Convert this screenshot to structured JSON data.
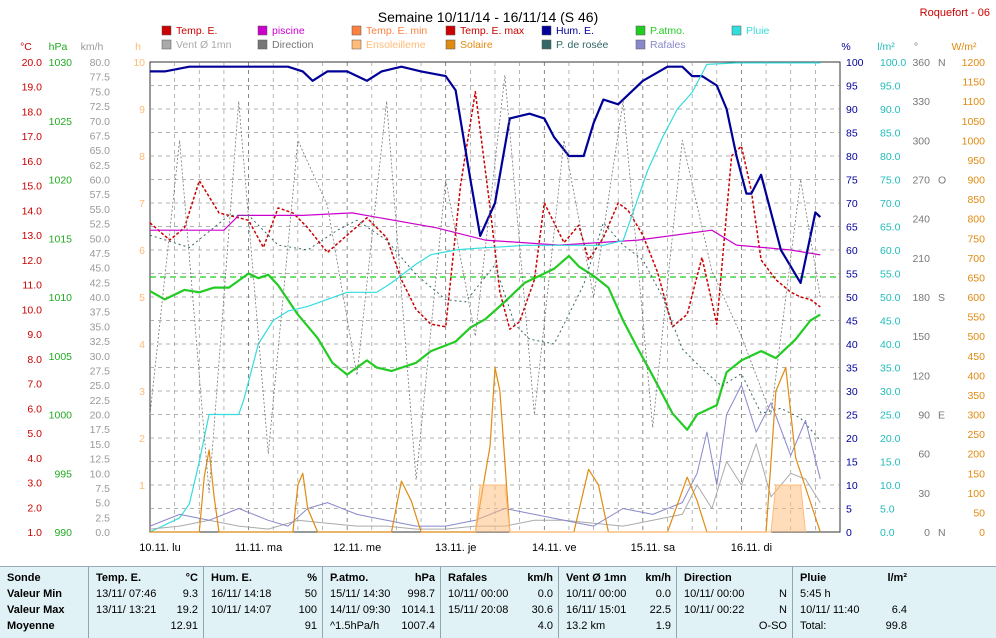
{
  "header": {
    "title": "Semaine 10/11/14 - 16/11/14 (S 46)",
    "station": "Roquefort - 06"
  },
  "colors": {
    "temp": "#cc0000",
    "piscine": "#cc00cc",
    "temp_min": "#ff8040",
    "temp_max": "#cc0000",
    "hum": "#000099",
    "patm": "#22cc22",
    "pluie": "#33dddd",
    "vent": "#aaaaaa",
    "direction": "#777777",
    "ensoleillement": "#ffbb77",
    "solaire": "#e08a10",
    "rosee": "#336666",
    "rafales": "#8888cc"
  },
  "legend": [
    {
      "label": "Temp. E.",
      "color": "#cc0000"
    },
    {
      "label": "piscine",
      "color": "#cc00cc"
    },
    {
      "label": "Temp. E. min",
      "color": "#ff8040"
    },
    {
      "label": "Temp. E. max",
      "color": "#cc0000"
    },
    {
      "label": "Hum. E.",
      "color": "#000099"
    },
    {
      "label": "P.atmo.",
      "color": "#22cc22"
    },
    {
      "label": "Pluie",
      "color": "#33dddd"
    },
    {
      "label": "Vent Ø 1mn",
      "color": "#aaaaaa"
    },
    {
      "label": "Direction",
      "color": "#777777"
    },
    {
      "label": "Ensoleilleme",
      "color": "#ffbb77"
    },
    {
      "label": "Solaire",
      "color": "#e08a10"
    },
    {
      "label": "P. de rosée",
      "color": "#336666"
    },
    {
      "label": "Rafales",
      "color": "#8888cc"
    }
  ],
  "chart_data": {
    "type": "line",
    "title": "Semaine 10/11/14 - 16/11/14 (S 46)",
    "x_categories": [
      "10.11. lu",
      "11.11. ma",
      "12.11. me",
      "13.11. je",
      "14.11. ve",
      "15.11. sa",
      "16.11. di"
    ],
    "axes": {
      "temp": {
        "unit": "°C",
        "min": 1,
        "max": 20,
        "ticks": [
          "1.0",
          "2.0",
          "3.0",
          "4.0",
          "5.0",
          "6.0",
          "7.0",
          "8.0",
          "9.0",
          "10.0",
          "11.0",
          "12.0",
          "13.0",
          "14.0",
          "15.0",
          "16.0",
          "17.0",
          "18.0",
          "19.0",
          "20.0"
        ]
      },
      "patm": {
        "unit": "hPa",
        "min": 990,
        "max": 1030,
        "ticks": [
          "990",
          "995",
          "1000",
          "1005",
          "1010",
          "1015",
          "1020",
          "1025",
          "1030"
        ]
      },
      "wind": {
        "unit": "km/h",
        "min": 0,
        "max": 80,
        "ticks": [
          "0.0",
          "2.5",
          "5.0",
          "7.5",
          "10.0",
          "12.5",
          "15.0",
          "17.5",
          "20.0",
          "22.5",
          "25.0",
          "27.5",
          "30.0",
          "32.5",
          "35.0",
          "37.5",
          "40.0",
          "42.5",
          "45.0",
          "47.5",
          "50.0",
          "52.5",
          "55.0",
          "57.5",
          "60.0",
          "62.5",
          "65.0",
          "67.5",
          "70.0",
          "72.5",
          "75.0",
          "77.5",
          "80.0"
        ]
      },
      "sun": {
        "unit": "h",
        "min": 0,
        "max": 10,
        "ticks": [
          "1",
          "2",
          "3",
          "4",
          "5",
          "6",
          "7",
          "8",
          "9",
          "10"
        ]
      },
      "hum": {
        "unit": "%",
        "min": 0,
        "max": 100,
        "ticks": [
          "0",
          "5",
          "10",
          "15",
          "20",
          "25",
          "30",
          "35",
          "40",
          "45",
          "50",
          "55",
          "60",
          "65",
          "70",
          "75",
          "80",
          "85",
          "90",
          "95",
          "100"
        ]
      },
      "rain": {
        "unit": "l/m²",
        "min": 0,
        "max": 100,
        "ticks": [
          "0.0",
          "5.0",
          "10.0",
          "15.0",
          "20.0",
          "25.0",
          "30.0",
          "35.0",
          "40.0",
          "45.0",
          "50.0",
          "55.0",
          "60.0",
          "65.0",
          "70.0",
          "75.0",
          "80.0",
          "85.0",
          "90.0",
          "95.0",
          "100.0"
        ]
      },
      "dir": {
        "unit": "°",
        "ticks": [
          "0",
          "30",
          "60",
          "90",
          "120",
          "150",
          "180",
          "210",
          "240",
          "270",
          "300",
          "330",
          "360"
        ],
        "compass": [
          "N",
          "",
          "",
          "E",
          "",
          "",
          "S",
          "",
          "",
          "O",
          "",
          "",
          "N"
        ]
      },
      "solar": {
        "unit": "W/m²",
        "min": 0,
        "max": 1200,
        "ticks": [
          "0",
          "50",
          "100",
          "150",
          "200",
          "250",
          "300",
          "350",
          "400",
          "450",
          "500",
          "550",
          "600",
          "650",
          "700",
          "750",
          "800",
          "850",
          "900",
          "950",
          "1000",
          "1050",
          "1100",
          "1150",
          "1200"
        ]
      }
    },
    "series": [
      {
        "name": "Temp. E.",
        "axis": "temp",
        "x": [
          0,
          0.2,
          0.35,
          0.5,
          0.7,
          0.9,
          1.0,
          1.15,
          1.3,
          1.45,
          1.6,
          1.8,
          2.0,
          2.2,
          2.4,
          2.55,
          2.7,
          2.85,
          3.0,
          3.15,
          3.3,
          3.45,
          3.55,
          3.65,
          3.75,
          3.9,
          4.0,
          4.2,
          4.35,
          4.45,
          4.6,
          4.75,
          4.85,
          5.0,
          5.15,
          5.3,
          5.45,
          5.6,
          5.75,
          5.9,
          6.0,
          6.1,
          6.2,
          6.35,
          6.5,
          6.6,
          6.7,
          6.8
        ],
        "y": [
          13.5,
          12.8,
          13.3,
          15.2,
          13.9,
          13.7,
          13.6,
          12.5,
          14.1,
          13.9,
          13.3,
          12.3,
          13.0,
          13.7,
          12.9,
          11.2,
          10.0,
          9.4,
          9.3,
          15.0,
          18.8,
          14.1,
          10.7,
          9.2,
          9.5,
          11.2,
          14.3,
          12.7,
          13.4,
          12.0,
          12.9,
          14.3,
          14.0,
          13.0,
          11.5,
          9.3,
          9.8,
          12.1,
          9.4,
          16.2,
          16.6,
          14.8,
          12.0,
          11.2,
          10.7,
          10.5,
          10.4,
          10.1
        ]
      },
      {
        "name": "piscine",
        "axis": "temp",
        "x": [
          0,
          0.75,
          0.9,
          1.55,
          2.05,
          2.9,
          3.4,
          4.15,
          4.95,
          5.7,
          5.95,
          6.5,
          6.8
        ],
        "y": [
          13.2,
          13.2,
          13.8,
          13.8,
          13.9,
          13.3,
          12.8,
          12.6,
          12.8,
          13.2,
          12.6,
          12.4,
          12.2
        ]
      },
      {
        "name": "Hum. E.",
        "axis": "hum",
        "x": [
          0,
          0.15,
          0.4,
          0.75,
          1.0,
          1.4,
          1.55,
          1.65,
          1.8,
          2.0,
          2.2,
          2.35,
          2.55,
          2.75,
          3.0,
          3.1,
          3.25,
          3.35,
          3.5,
          3.65,
          3.85,
          4.0,
          4.1,
          4.25,
          4.4,
          4.5,
          4.6,
          4.75,
          4.9,
          5.0,
          5.25,
          5.4,
          5.5,
          5.6,
          5.75,
          5.85,
          5.95,
          6.05,
          6.1,
          6.2,
          6.4,
          6.6,
          6.75,
          6.8
        ],
        "y": [
          98,
          98,
          99,
          99,
          99,
          99,
          98,
          96,
          98,
          98,
          96,
          98,
          99,
          98,
          97,
          94,
          75,
          63,
          70,
          88,
          89,
          88,
          84,
          80,
          80,
          87,
          92,
          91,
          94,
          96,
          99,
          99,
          97,
          97,
          95,
          90,
          80,
          72,
          72,
          76,
          60,
          53,
          68,
          67
        ]
      },
      {
        "name": "P.atmo.",
        "axis": "patm",
        "x": [
          0,
          0.15,
          0.35,
          0.5,
          0.65,
          0.8,
          1.0,
          1.1,
          1.2,
          1.3,
          1.5,
          1.7,
          1.85,
          2.0,
          2.2,
          2.3,
          2.45,
          2.7,
          2.85,
          3.1,
          3.25,
          3.4,
          3.6,
          3.8,
          3.95,
          4.1,
          4.25,
          4.35,
          4.5,
          4.65,
          4.8,
          4.95,
          5.1,
          5.3,
          5.45,
          5.55,
          5.75,
          5.85,
          6.0,
          6.2,
          6.35,
          6.55,
          6.7,
          6.8
        ],
        "y": [
          1010.5,
          1009.8,
          1010.6,
          1010.4,
          1010.8,
          1010.8,
          1012,
          1011.6,
          1011.9,
          1011,
          1008.5,
          1006.5,
          1004.4,
          1003.4,
          1004.6,
          1004,
          1003.7,
          1004.4,
          1005.4,
          1006.2,
          1007.4,
          1008.1,
          1009.6,
          1011.2,
          1011.8,
          1012.4,
          1013.5,
          1012.6,
          1011.8,
          1010.8,
          1008,
          1005.6,
          1003.3,
          1000.1,
          998.7,
          1000,
          1000.8,
          1003.6,
          1004.6,
          1005.4,
          1004.8,
          1006.4,
          1008,
          1008.5
        ]
      },
      {
        "name": "P. de rosée",
        "axis": "temp",
        "x": [
          0,
          0.4,
          0.8,
          1.0,
          1.3,
          1.6,
          1.9,
          2.1,
          2.4,
          2.7,
          3.0,
          3.2,
          3.5,
          3.7,
          3.85,
          4.1,
          4.4,
          4.6,
          4.8,
          5.0,
          5.2,
          5.4,
          5.6,
          5.8,
          6.0,
          6.2,
          6.4,
          6.6,
          6.8
        ],
        "y": [
          13,
          12.5,
          13.8,
          13.8,
          12.6,
          12.4,
          13.2,
          13.6,
          12.8,
          11.4,
          10.4,
          10.3,
          11.8,
          9.4,
          8.8,
          8.6,
          11.0,
          13.5,
          12.6,
          12.0,
          10.5,
          8.4,
          7.6,
          6.9,
          7.4,
          5.8,
          6.0,
          5.6,
          4.7
        ]
      },
      {
        "name": "Pluie",
        "axis": "rain",
        "x": [
          0,
          0.3,
          0.4,
          0.5,
          0.6,
          0.9,
          0.95,
          1.1,
          1.25,
          1.4,
          1.6,
          2.0,
          2.05,
          2.3,
          2.45,
          2.7,
          2.85,
          3.1,
          3.2,
          3.4,
          3.6,
          3.8,
          3.9,
          4.3,
          4.6,
          4.8,
          4.9,
          5.05,
          5.2,
          5.35,
          5.5,
          5.65,
          5.95,
          6.2,
          6.8
        ],
        "y": [
          0,
          3,
          6,
          15,
          25,
          25,
          28,
          40,
          45,
          47,
          48,
          51,
          51,
          51,
          53,
          57,
          59,
          60,
          60.2,
          60.5,
          60.7,
          61,
          61,
          61,
          61,
          62,
          68,
          77,
          84,
          90,
          93.5,
          99.5,
          99.8,
          99.8,
          99.8
        ]
      },
      {
        "name": "Vent Ø 1mn",
        "axis": "wind",
        "x": [
          0,
          0.3,
          0.6,
          0.9,
          1.2,
          1.5,
          1.8,
          2.1,
          2.4,
          2.7,
          3.0,
          3.3,
          3.6,
          3.9,
          4.2,
          4.5,
          4.8,
          5.1,
          5.4,
          5.55,
          5.7,
          5.85,
          6.0,
          6.15,
          6.3,
          6.5,
          6.65,
          6.8
        ],
        "y": [
          0.5,
          1,
          2,
          1,
          0.5,
          2,
          1.5,
          1,
          1,
          0.5,
          0.5,
          1,
          1,
          2,
          2,
          1.5,
          1,
          2,
          3,
          8,
          4,
          12,
          8,
          15,
          6,
          10,
          9,
          5
        ]
      },
      {
        "name": "Rafales",
        "axis": "wind",
        "x": [
          0,
          0.3,
          0.6,
          0.9,
          1.2,
          1.4,
          1.6,
          1.8,
          2.1,
          2.4,
          2.7,
          3.0,
          3.3,
          3.6,
          3.9,
          4.2,
          4.5,
          4.8,
          5.1,
          5.4,
          5.55,
          5.65,
          5.75,
          5.85,
          6.0,
          6.15,
          6.3,
          6.5,
          6.65,
          6.8
        ],
        "y": [
          1,
          3,
          2,
          4,
          2,
          1,
          4,
          5,
          3,
          2,
          1,
          1,
          2,
          4,
          3,
          2,
          1,
          4,
          3,
          5,
          10,
          17,
          8,
          20,
          25,
          17,
          22,
          13,
          19,
          9
        ]
      },
      {
        "name": "Solaire",
        "axis": "solar",
        "x": [
          0,
          0.5,
          0.55,
          0.6,
          0.65,
          0.7,
          1.0,
          1.45,
          1.5,
          1.55,
          1.6,
          1.7,
          2.0,
          2.45,
          2.55,
          2.65,
          2.75,
          3.0,
          3.3,
          3.45,
          3.5,
          3.55,
          3.65,
          4.0,
          4.3,
          4.45,
          4.55,
          4.65,
          5.0,
          5.25,
          5.45,
          5.55,
          5.65,
          6.0,
          6.25,
          6.35,
          6.45,
          6.55,
          6.8
        ],
        "y": [
          0,
          0,
          140,
          210,
          90,
          0,
          0,
          0,
          120,
          150,
          60,
          0,
          0,
          0,
          130,
          80,
          0,
          0,
          0,
          220,
          420,
          360,
          0,
          0,
          0,
          160,
          120,
          0,
          0,
          0,
          140,
          80,
          0,
          0,
          0,
          360,
          420,
          190,
          0
        ]
      },
      {
        "name": "Ensoleilleme",
        "axis": "sun",
        "x": [
          3.3,
          3.35,
          3.6,
          3.65,
          6.3,
          6.35,
          6.6,
          6.65
        ],
        "y": [
          0,
          1,
          1,
          0,
          0,
          1,
          1,
          0
        ]
      },
      {
        "name": "Direction",
        "axis": "dir",
        "x": [
          0,
          0.3,
          0.6,
          0.9,
          1.2,
          1.5,
          1.8,
          2.1,
          2.4,
          2.7,
          3.0,
          3.3,
          3.6,
          3.9,
          4.2,
          4.5,
          4.8,
          5.1,
          5.4,
          5.7,
          6.0,
          6.3,
          6.6,
          6.8
        ],
        "y": [
          90,
          300,
          30,
          330,
          60,
          300,
          250,
          120,
          330,
          40,
          270,
          150,
          350,
          90,
          300,
          180,
          330,
          80,
          300,
          200,
          150,
          90,
          270,
          180
        ]
      }
    ]
  },
  "table": {
    "columns": [
      {
        "header": [
          "Sonde",
          ""
        ],
        "rows": [
          [
            "Valeur Min",
            ""
          ],
          [
            "Valeur Max",
            ""
          ],
          [
            "Moyenne",
            ""
          ]
        ]
      },
      {
        "header": [
          "Temp. E.",
          "°C"
        ],
        "rows": [
          [
            "13/11/ 07:46",
            "9.3"
          ],
          [
            "13/11/ 13:21",
            "19.2"
          ],
          [
            "",
            "12.91"
          ]
        ]
      },
      {
        "header": [
          "Hum. E.",
          "%"
        ],
        "rows": [
          [
            "16/11/ 14:18",
            "50"
          ],
          [
            "10/11/ 14:07",
            "100"
          ],
          [
            "",
            "91"
          ]
        ]
      },
      {
        "header": [
          "P.atmo.",
          "hPa"
        ],
        "rows": [
          [
            "15/11/ 14:30",
            "998.7"
          ],
          [
            "14/11/ 09:30",
            "1014.1"
          ],
          [
            "^1.5hPa/h",
            "1007.4"
          ]
        ]
      },
      {
        "header": [
          "Rafales",
          "km/h"
        ],
        "rows": [
          [
            "10/11/ 00:00",
            "0.0"
          ],
          [
            "15/11/ 20:08",
            "30.6"
          ],
          [
            "",
            "4.0"
          ]
        ]
      },
      {
        "header": [
          "Vent Ø 1mn",
          "km/h"
        ],
        "rows": [
          [
            "10/11/ 00:00",
            "0.0"
          ],
          [
            "16/11/ 15:01",
            "22.5"
          ],
          [
            "13.2 km",
            "1.9"
          ]
        ]
      },
      {
        "header": [
          "Direction",
          ""
        ],
        "rows": [
          [
            "10/11/ 00:00",
            "N"
          ],
          [
            "10/11/ 00:22",
            "N"
          ],
          [
            "",
            "O-SO"
          ]
        ]
      },
      {
        "header": [
          "Pluie",
          "l/m²"
        ],
        "rows": [
          [
            "5:45 h",
            ""
          ],
          [
            "10/11/ 11:40",
            "6.4"
          ],
          [
            "Total:",
            "99.8"
          ]
        ]
      }
    ]
  }
}
